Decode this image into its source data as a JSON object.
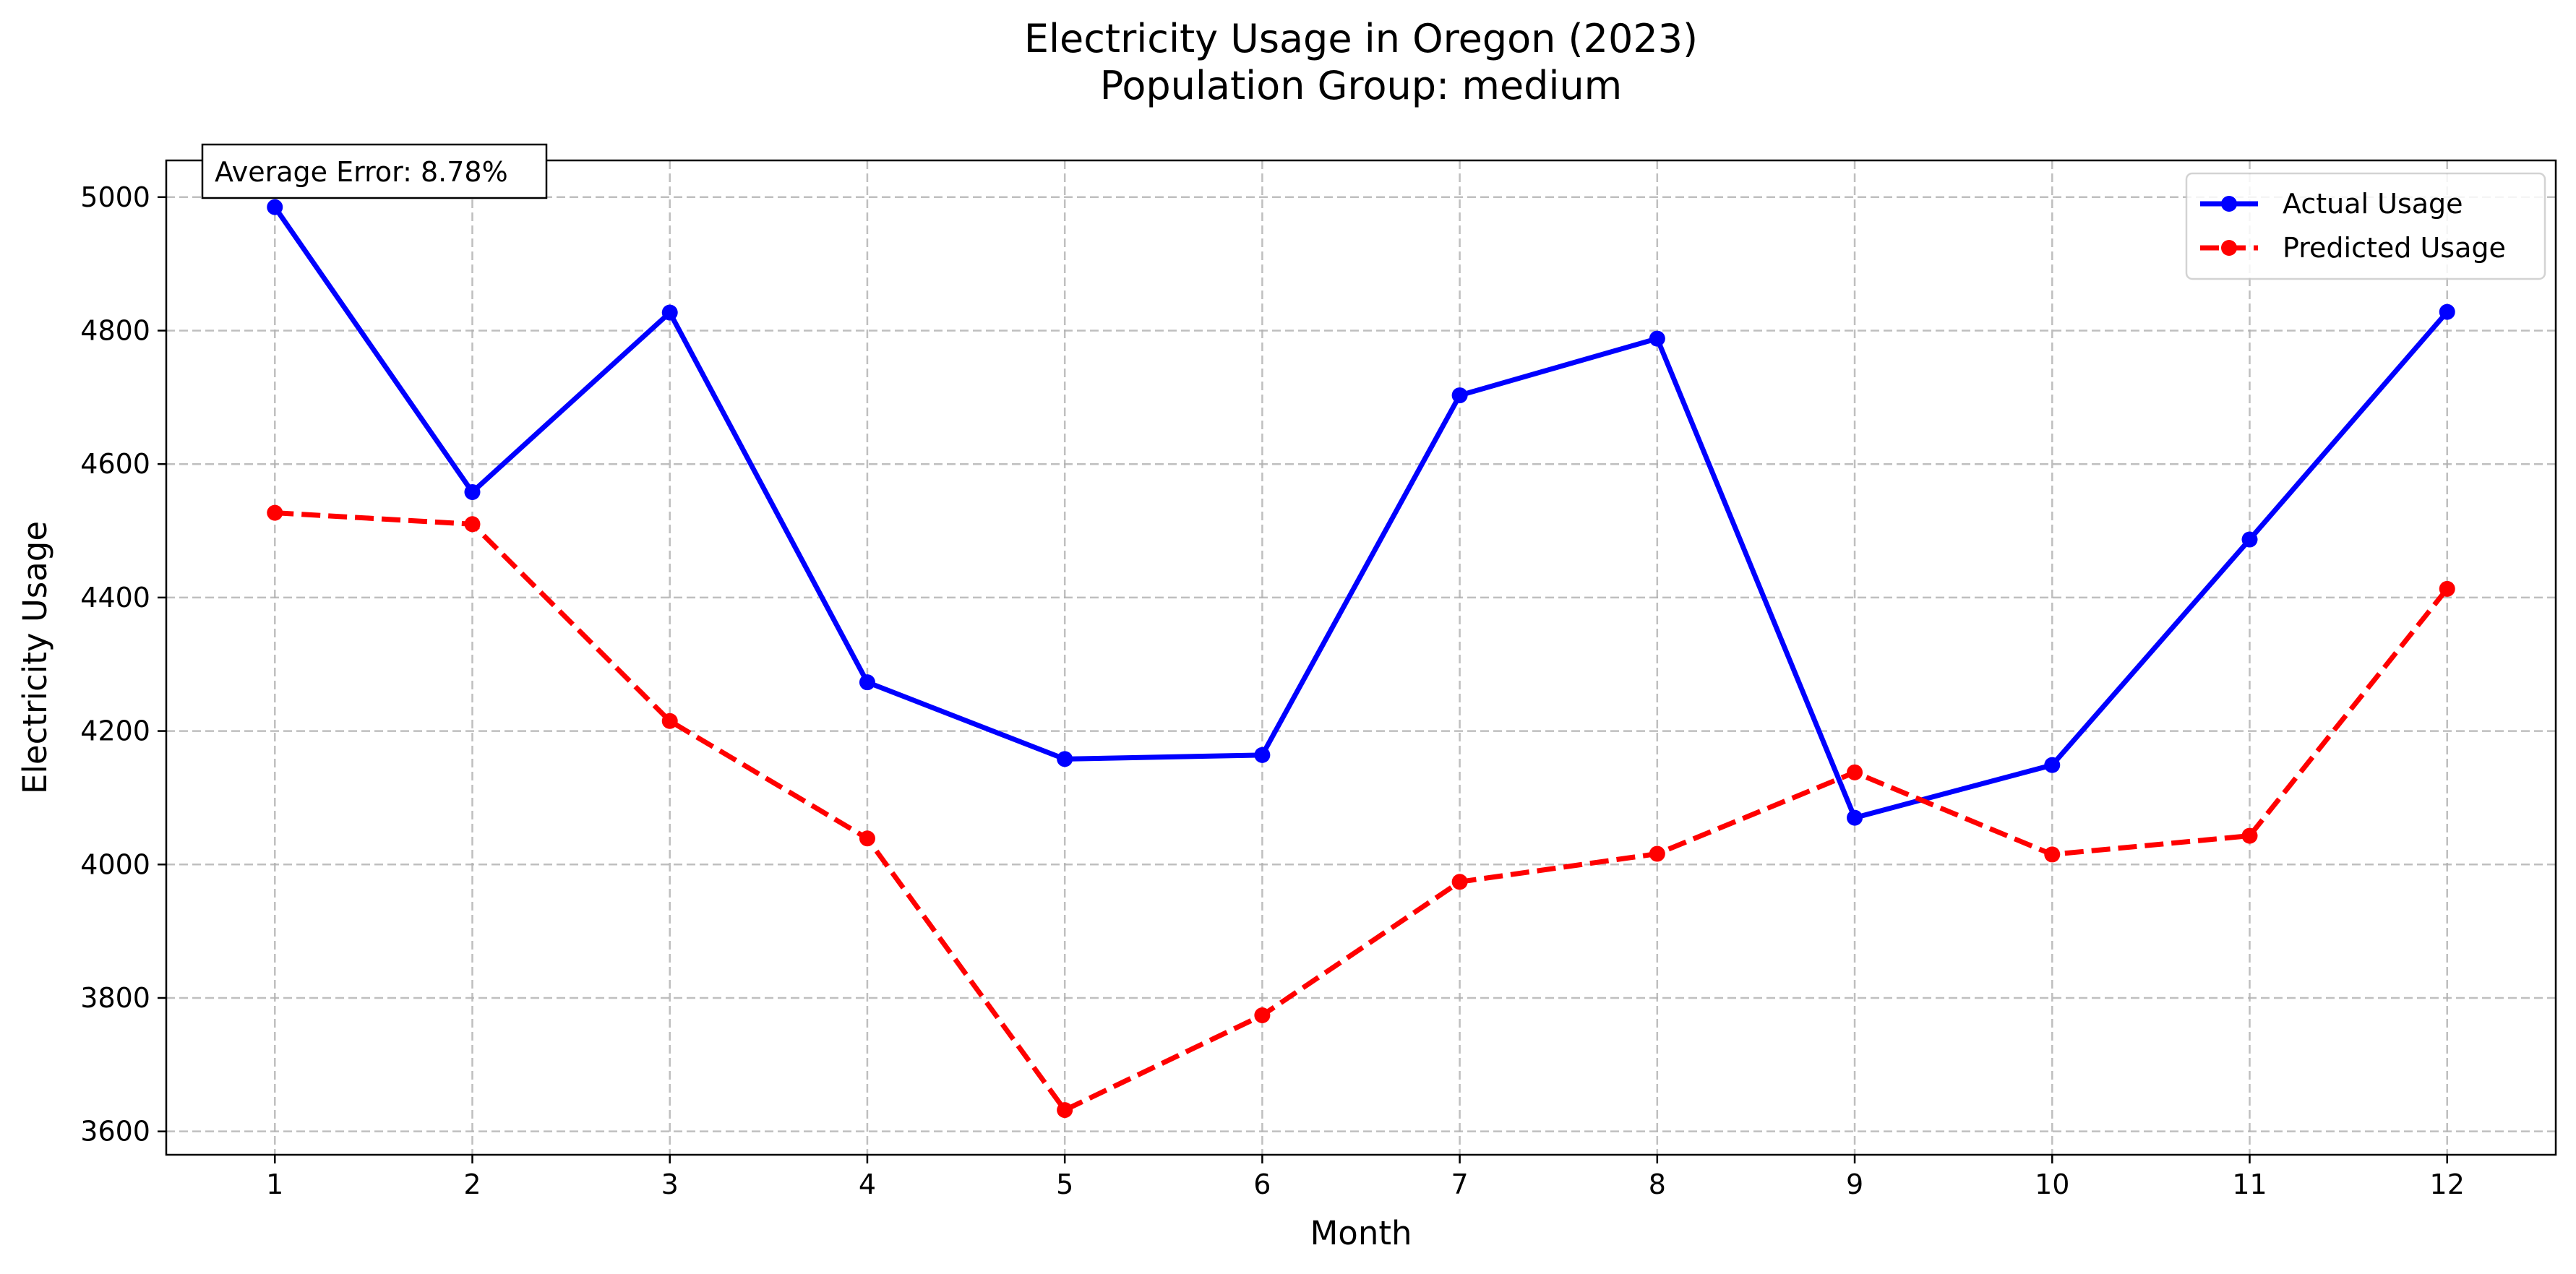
{
  "chart_data": {
    "type": "line",
    "title": "Electricity Usage in Oregon (2023)",
    "subtitle": "Population Group: medium",
    "xlabel": "Month",
    "ylabel": "Electricity Usage",
    "x": [
      1,
      2,
      3,
      4,
      5,
      6,
      7,
      8,
      9,
      10,
      11,
      12
    ],
    "xlim": [
      0.45,
      12.55
    ],
    "ylim": [
      3565,
      5055
    ],
    "yticks": [
      3600,
      3800,
      4000,
      4200,
      4400,
      4600,
      4800,
      5000
    ],
    "grid": true,
    "legend_position": "top-right",
    "annotation": "Average Error: 8.78%",
    "series": [
      {
        "name": "Actual Usage",
        "color": "#0000ff",
        "style": "solid",
        "values": [
          4985,
          4558,
          4827,
          4273,
          4158,
          4164,
          4703,
          4788,
          4070,
          4149,
          4487,
          4828
        ]
      },
      {
        "name": "Predicted Usage",
        "color": "#ff0000",
        "style": "dashed",
        "values": [
          4527,
          4510,
          4215,
          4039,
          3632,
          3774,
          3974,
          4016,
          4138,
          4015,
          4043,
          4413
        ]
      }
    ]
  }
}
